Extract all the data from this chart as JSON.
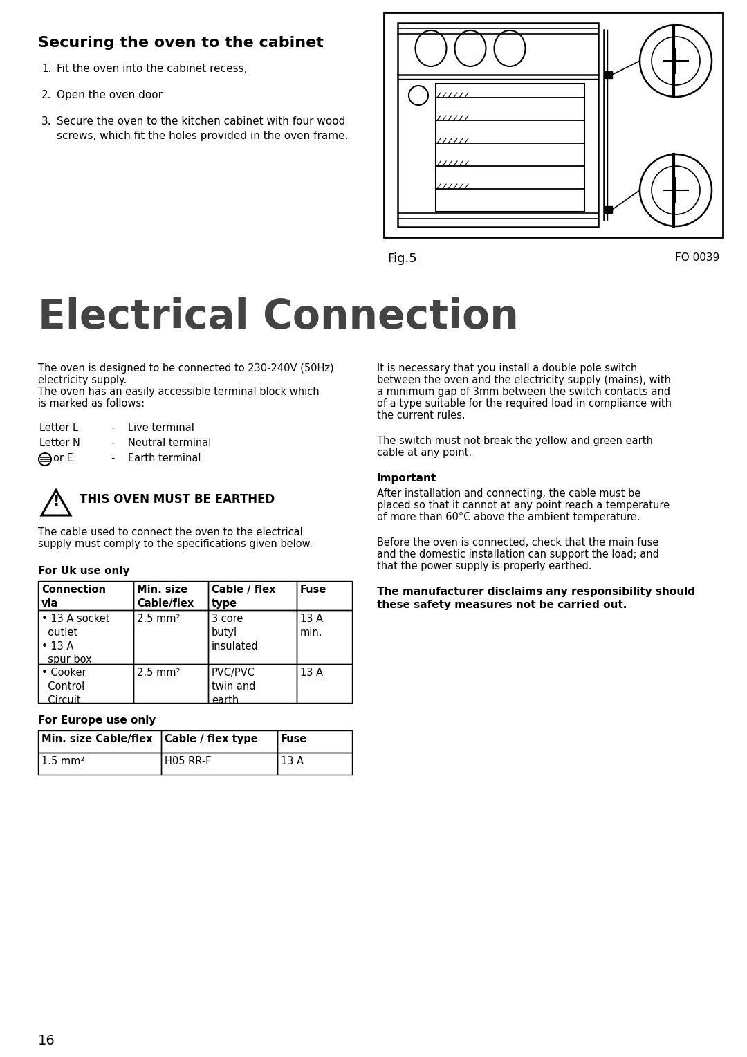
{
  "bg_color": "#ffffff",
  "page_number": "16",
  "section1_title": "Securing the oven to the cabinet",
  "section1_items": [
    "Fit the oven into the cabinet recess,",
    "Open the oven door",
    "Secure the oven to the kitchen cabinet with four wood\nscrews, which fit the holes provided in the oven frame."
  ],
  "fig_label": "Fig.5",
  "fig_code": "FO 0039",
  "section2_title": "Electrical Connection",
  "left_col_p1_lines": [
    "The oven is designed to be connected to 230-240V (50Hz)",
    "electricity supply.",
    "The oven has an easily accessible terminal block which",
    "is marked as follows:"
  ],
  "terminal_rows": [
    [
      "Letter L",
      "-",
      "Live terminal"
    ],
    [
      "Letter N",
      "-",
      "Neutral terminal"
    ],
    [
      "or E",
      "-",
      "Earth terminal"
    ]
  ],
  "warning_text": "THIS OVEN MUST BE EARTHED",
  "cable_text_lines": [
    "The cable used to connect the oven to the electrical",
    "supply must comply to the specifications given below."
  ],
  "uk_label": "For Uk use only",
  "uk_table_headers": [
    "Connection\nvia",
    "Min. size\nCable/flex",
    "Cable / flex\ntype",
    "Fuse"
  ],
  "uk_table_rows": [
    [
      "• 13 A socket\n  outlet\n• 13 A\n  spur box",
      "2.5 mm²",
      "3 core\nbutyl\ninsulated",
      "13 A\nmin."
    ],
    [
      "• Cooker\n  Control\n  Circuit",
      "2.5 mm²",
      "PVC/PVC\ntwin and\nearth",
      "13 A"
    ]
  ],
  "europe_label": "For Europe use only",
  "europe_table_headers": [
    "Min. size Cable/flex",
    "Cable / flex type",
    "Fuse"
  ],
  "europe_table_rows": [
    [
      "1.5 mm²",
      "H05 RR-F",
      "13 A"
    ]
  ],
  "right_col_p1_lines": [
    "It is necessary that you install a double pole switch",
    "between the oven and the electricity supply (mains), with",
    "a minimum gap of 3mm between the switch contacts and",
    "of a type suitable for the required load in compliance with",
    "the current rules."
  ],
  "right_col_p2_lines": [
    "The switch must not break the yellow and green earth",
    "cable at any point."
  ],
  "right_col_important": "Important",
  "right_col_p3_lines": [
    "After installation and connecting, the cable must be",
    "placed so that it cannot at any point reach a temperature",
    "of more than 60°C above the ambient temperature."
  ],
  "right_col_p4_lines": [
    "Before the oven is connected, check that the main fuse",
    "and the domestic installation can support the load; and",
    "that the power supply is properly earthed."
  ],
  "right_col_p5_bold_lines": [
    "The manufacturer disclaims any responsibility should",
    "these safety measures not be carried out."
  ]
}
